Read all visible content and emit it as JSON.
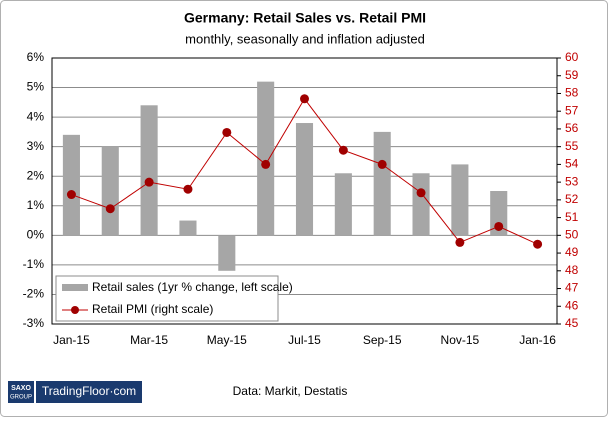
{
  "chart_data": {
    "type": "bar-line",
    "title": "Germany: Retail Sales vs. Retail PMI",
    "subtitle": "monthly, seasonally and inflation adjusted",
    "categories": [
      "Jan-15",
      null,
      "Mar-15",
      null,
      "May-15",
      null,
      "Jul-15",
      null,
      "Sep-15",
      null,
      "Nov-15",
      null,
      "Jan-16"
    ],
    "series": [
      {
        "name": "Retail sales (1yr % change, left scale)",
        "type": "bar",
        "color": "#a6a6a6",
        "values": [
          3.4,
          3.0,
          4.4,
          0.5,
          -1.2,
          5.2,
          3.8,
          2.1,
          3.5,
          2.1,
          2.4,
          1.5,
          null
        ]
      },
      {
        "name": "Retail PMI (right scale)",
        "type": "line",
        "axis": "y2",
        "color": "#c00000",
        "values": [
          52.3,
          51.5,
          53.0,
          52.6,
          55.8,
          54.0,
          57.7,
          54.8,
          54.0,
          52.4,
          49.6,
          50.5,
          49.5
        ]
      }
    ],
    "ylim": [
      -3,
      6
    ],
    "yticks": [
      {
        "value": -3,
        "label": "-3%"
      },
      {
        "value": -2,
        "label": "-2%"
      },
      {
        "value": -1,
        "label": "-1%"
      },
      {
        "value": 0,
        "label": "0%"
      },
      {
        "value": 1,
        "label": "1%"
      },
      {
        "value": 2,
        "label": "2%"
      },
      {
        "value": 3,
        "label": "3%"
      },
      {
        "value": 4,
        "label": "4%"
      },
      {
        "value": 5,
        "label": "5%"
      },
      {
        "value": 6,
        "label": "6%"
      }
    ],
    "y2lim": [
      45,
      60
    ],
    "y2ticks": [
      45,
      46,
      47,
      48,
      49,
      50,
      51,
      52,
      53,
      54,
      55,
      56,
      57,
      58,
      59,
      60
    ],
    "grid": true,
    "legend": "bottom-left"
  },
  "footer": {
    "logo_top": "SAXO",
    "logo_bottom": "GROUP",
    "brand": "TradingFloor·com",
    "source": "Data: Markit, Destatis"
  }
}
